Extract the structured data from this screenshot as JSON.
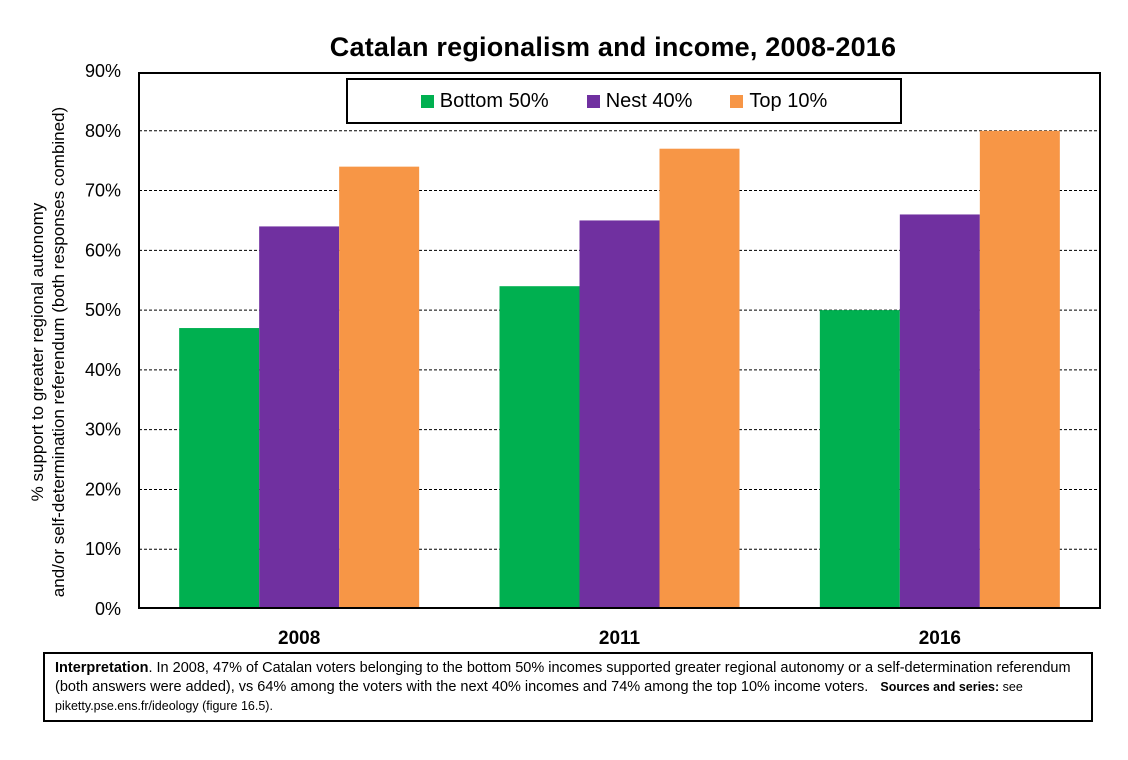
{
  "chart_data": {
    "type": "bar",
    "title": "Catalan regionalism and income, 2008-2016",
    "ylabel_line1": "% support to greater regional autonomy",
    "ylabel_line2": "and/or self-determination referendum (both responses combined)",
    "xlabel": "",
    "categories": [
      "2008",
      "2011",
      "2016"
    ],
    "series": [
      {
        "name": "Bottom 50%",
        "color": "#00b050",
        "values": [
          47,
          54,
          50
        ]
      },
      {
        "name": "Nest 40%",
        "color": "#7030a0",
        "values": [
          64,
          65,
          66
        ]
      },
      {
        "name": "Top 10%",
        "color": "#f79646",
        "values": [
          74,
          77,
          80
        ]
      }
    ],
    "ylim": [
      0,
      90
    ],
    "yticks": [
      "0%",
      "10%",
      "20%",
      "30%",
      "40%",
      "50%",
      "60%",
      "70%",
      "80%",
      "90%"
    ],
    "grid": true,
    "legend_position": "top-center"
  },
  "note": {
    "interp_label": "Interpretation",
    "interp_text": ". In 2008, 47% of Catalan voters belonging to the bottom 50% incomes supported greater regional autonomy or a self-determination referendum (both answers were added), vs 64% among the voters with the next 40% incomes and 74% among the top 10% income voters.",
    "sources_label": "Sources and series:",
    "sources_text": " see piketty.pse.ens.fr/ideology (figure 16.5)."
  }
}
